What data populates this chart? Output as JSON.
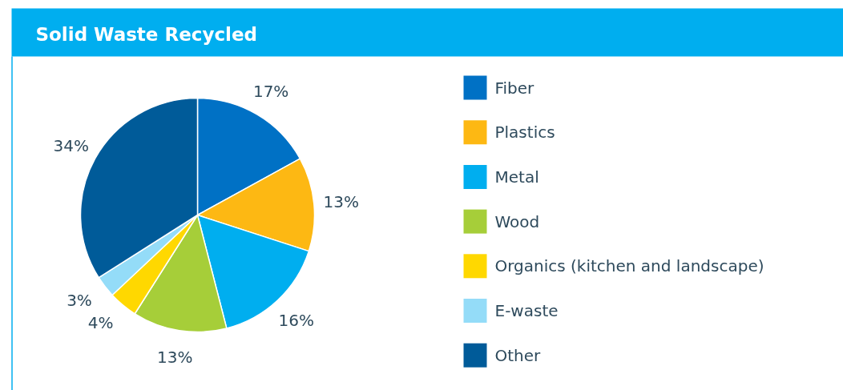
{
  "chart_data": {
    "type": "pie",
    "title": "Solid Waste Recycled",
    "categories": [
      "Fiber",
      "Plastics",
      "Metal",
      "Wood",
      "Organics (kitchen and landscape)",
      "E-waste",
      "Other"
    ],
    "values": [
      17,
      13,
      16,
      13,
      4,
      3,
      34
    ],
    "colors": [
      "#0071c5",
      "#fdb813",
      "#00aeef",
      "#a6ce39",
      "#ffd800",
      "#94dcf8",
      "#005b99"
    ],
    "value_labels": [
      "17%",
      "13%",
      "16%",
      "13%",
      "4%",
      "3%",
      "34%"
    ],
    "legend": "right"
  }
}
